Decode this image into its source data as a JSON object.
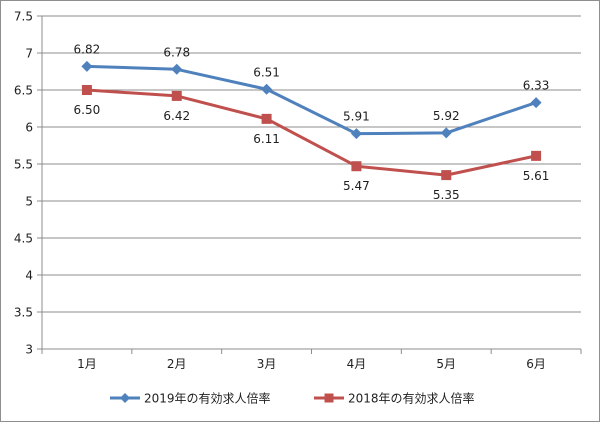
{
  "chart_data": {
    "type": "line",
    "categories": [
      "1月",
      "2月",
      "3月",
      "4月",
      "5月",
      "6月"
    ],
    "series": [
      {
        "name": "2019年の有効求人倍率",
        "values": [
          6.82,
          6.78,
          6.51,
          5.91,
          5.92,
          6.33
        ],
        "labels": [
          "6.82",
          "6.78",
          "6.51",
          "5.91",
          "5.92",
          "6.33"
        ],
        "color": "#4f81bd",
        "marker": "diamond"
      },
      {
        "name": "2018年の有効求人倍率",
        "values": [
          6.5,
          6.42,
          6.11,
          5.47,
          5.35,
          5.61
        ],
        "labels": [
          "6.50",
          "6.42",
          "6.11",
          "5.47",
          "5.35",
          "5.61"
        ],
        "color": "#c0504d",
        "marker": "square"
      }
    ],
    "yticks": [
      "3",
      "3.5",
      "4",
      "4.5",
      "5",
      "5.5",
      "6",
      "6.5",
      "7",
      "7.5"
    ],
    "ylim": [
      3,
      7.5
    ],
    "grid": true,
    "legend_position": "bottom"
  }
}
